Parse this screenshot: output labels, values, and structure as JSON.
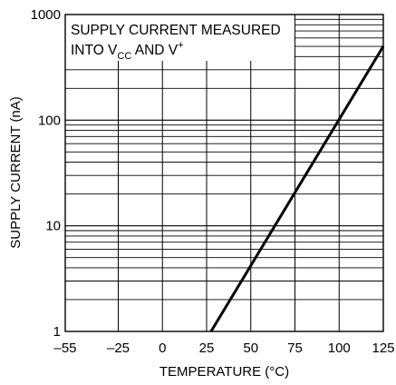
{
  "chart_data": {
    "type": "line",
    "title": "",
    "xlabel": "TEMPERATURE (°C)",
    "ylabel": "SUPPLY CURRENT (nA)",
    "xlim": [
      -55,
      125
    ],
    "ylim": [
      1,
      1000
    ],
    "y_scale": "log",
    "grid": true,
    "x_ticks": [
      "–55",
      "–25",
      "0",
      "25",
      "50",
      "75",
      "100",
      "125"
    ],
    "y_ticks": [
      "1",
      "10",
      "100",
      "1000"
    ],
    "annotation": {
      "line1": "SUPPLY CURRENT MEASURED",
      "line2_pre": "INTO V",
      "line2_sub": "CC",
      "line2_mid": " AND V",
      "line2_sup": "+"
    },
    "series": [
      {
        "color": "#000000",
        "x": [
          27.5,
          125
        ],
        "y": [
          1,
          500
        ]
      }
    ]
  }
}
